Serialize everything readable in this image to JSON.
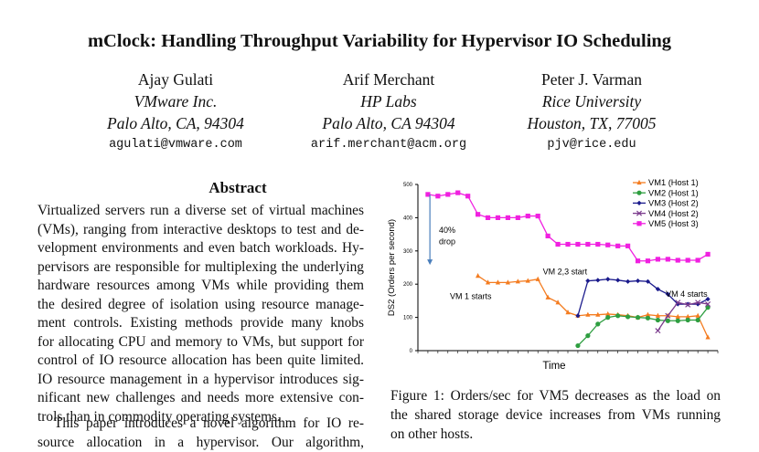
{
  "paper": {
    "title": "mClock: Handling Throughput Variability for Hypervisor IO Scheduling",
    "authors": [
      {
        "name": "Ajay Gulati",
        "affiliation": "VMware Inc.",
        "location": "Palo Alto, CA, 94304",
        "email": "agulati@vmware.com"
      },
      {
        "name": "Arif Merchant",
        "affiliation": "HP Labs",
        "location": "Palo Alto, CA 94304",
        "email": "arif.merchant@acm.org"
      },
      {
        "name": "Peter J. Varman",
        "affiliation": "Rice University",
        "location": "Houston, TX, 77005",
        "email": "pjv@rice.edu"
      }
    ],
    "abstract_heading": "Abstract",
    "abstract_lines": [
      "Virtualized servers run a diverse set of virtual machines",
      "(VMs), ranging from interactive desktops to test and de-",
      "velopment environments and even batch workloads. Hy-",
      "pervisors are responsible for multiplexing the underlying",
      "hardware resources among VMs while providing them",
      "the desired degree of isolation using resource manage-",
      "ment controls. Existing methods provide many knobs",
      "for allocating CPU and memory to VMs, but support for",
      "control of IO resource allocation has been quite limited.",
      "IO resource management in a hypervisor introduces sig-",
      "nificant new challenges and needs more extensive con-",
      "trols than in commodity operating systems."
    ],
    "intro_lines": [
      "This paper introduces a novel algorithm for IO re-",
      "source allocation in a hypervisor. Our algorithm,"
    ],
    "caption_lines": [
      "Figure 1: Orders/sec for VM5 decreases as the load on",
      "the shared storage device increases from VMs running",
      "on other hosts."
    ]
  },
  "chart_data": {
    "type": "line",
    "title": "",
    "xlabel": "Time",
    "ylabel": "DS2 (Orders per second)",
    "ylim": [
      0,
      500
    ],
    "yticks": [
      "0",
      "100",
      "200",
      "300",
      "400",
      "500"
    ],
    "xlim": [
      0,
      30
    ],
    "legend_position": "top-right",
    "series": [
      {
        "name": "VM1 (Host 1)",
        "color": "#f47c20",
        "marker": "triangle",
        "x": [
          6,
          7,
          8,
          9,
          10,
          11,
          12,
          13,
          14,
          15,
          16,
          17,
          18,
          19,
          20,
          21,
          22,
          23,
          24,
          25,
          26,
          27,
          28,
          29
        ],
        "values": [
          225,
          205,
          205,
          205,
          208,
          210,
          215,
          160,
          145,
          115,
          105,
          108,
          108,
          110,
          108,
          105,
          100,
          108,
          105,
          105,
          102,
          102,
          105,
          40
        ]
      },
      {
        "name": "VM2 (Host 1)",
        "color": "#2e9e40",
        "marker": "circle",
        "x": [
          16,
          17,
          18,
          19,
          20,
          21,
          22,
          23,
          24,
          25,
          26,
          27,
          28,
          29
        ],
        "values": [
          15,
          45,
          80,
          100,
          105,
          102,
          100,
          98,
          92,
          90,
          90,
          92,
          92,
          130
        ]
      },
      {
        "name": "VM3 (Host 2)",
        "color": "#1a1a8c",
        "marker": "diamond",
        "x": [
          16,
          17,
          18,
          19,
          20,
          21,
          22,
          23,
          24,
          25,
          26,
          27,
          28,
          29
        ],
        "values": [
          105,
          210,
          212,
          215,
          212,
          208,
          210,
          208,
          185,
          170,
          140,
          140,
          140,
          155
        ]
      },
      {
        "name": "VM4 (Host 2)",
        "color": "#7a3a8c",
        "marker": "x",
        "x": [
          24,
          25,
          26,
          27,
          28,
          29
        ],
        "values": [
          60,
          105,
          145,
          138,
          145,
          140
        ]
      },
      {
        "name": "VM5 (Host 3)",
        "color": "#f020e0",
        "marker": "square",
        "x": [
          1,
          2,
          3,
          4,
          5,
          6,
          7,
          8,
          9,
          10,
          11,
          12,
          13,
          14,
          15,
          16,
          17,
          18,
          19,
          20,
          21,
          22,
          23,
          24,
          25,
          26,
          27,
          28,
          29
        ],
        "values": [
          470,
          465,
          470,
          475,
          465,
          410,
          400,
          400,
          400,
          400,
          405,
          405,
          345,
          320,
          320,
          320,
          320,
          320,
          318,
          315,
          315,
          270,
          270,
          275,
          275,
          272,
          272,
          272,
          290
        ]
      }
    ],
    "annotations": [
      {
        "text": "40%",
        "x": 2.1,
        "y": 355
      },
      {
        "text": "drop",
        "x": 2.1,
        "y": 320
      },
      {
        "text": "VM 1 starts",
        "x": 3.2,
        "y": 155
      },
      {
        "text": "VM 2,3 start",
        "x": 12.5,
        "y": 230
      },
      {
        "text": "VM 4 starts",
        "x": 24.8,
        "y": 162
      }
    ],
    "arrow": {
      "x": 1.2,
      "from_y": 470,
      "to_y": 258
    }
  }
}
